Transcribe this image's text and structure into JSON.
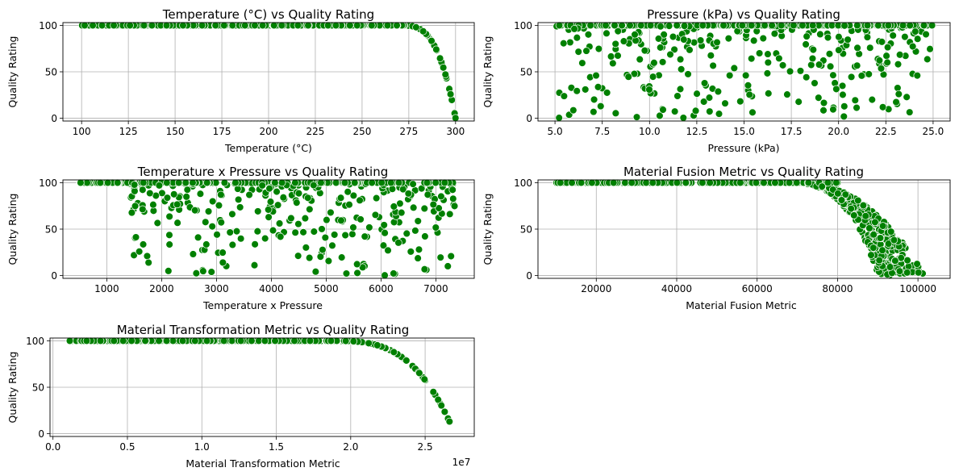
{
  "figure": {
    "marker_color": "#008000",
    "marker_edge_color": "#ffffff",
    "grid_color": "#b0b0b0"
  },
  "chart_data": [
    {
      "type": "scatter",
      "title": "Temperature (°C) vs Quality Rating",
      "xlabel": "Temperature (°C)",
      "ylabel": "Quality Rating",
      "xlim": [
        90,
        310
      ],
      "ylim": [
        -3,
        103
      ],
      "xticks": [
        100,
        125,
        150,
        175,
        200,
        225,
        250,
        275,
        300
      ],
      "xtick_labels": [
        "100",
        "125",
        "150",
        "175",
        "200",
        "225",
        "250",
        "275",
        "300"
      ],
      "yticks": [
        0,
        50,
        100
      ],
      "ytick_labels": [
        "0",
        "50",
        "100"
      ],
      "grid": true,
      "shape": "temp",
      "count": 420
    },
    {
      "type": "scatter",
      "title": "Pressure (kPa) vs Quality Rating",
      "xlabel": "Pressure (kPa)",
      "ylabel": "Quality Rating",
      "xlim": [
        4.1,
        25.9
      ],
      "ylim": [
        -3,
        103
      ],
      "xticks": [
        5,
        7.5,
        10,
        12.5,
        15,
        17.5,
        20,
        22.5,
        25
      ],
      "xtick_labels": [
        "5.0",
        "7.5",
        "10.0",
        "12.5",
        "15.0",
        "17.5",
        "20.0",
        "22.5",
        "25.0"
      ],
      "yticks": [
        0,
        50,
        100
      ],
      "ytick_labels": [
        "0",
        "50",
        "100"
      ],
      "grid": true,
      "shape": "pressure",
      "count": 520
    },
    {
      "type": "scatter",
      "title": "Temperature x Pressure vs Quality Rating",
      "xlabel": "Temperature x Pressure",
      "ylabel": "Quality Rating",
      "xlim": [
        200,
        7700
      ],
      "ylim": [
        -3,
        103
      ],
      "xticks": [
        1000,
        2000,
        3000,
        4000,
        5000,
        6000,
        7000
      ],
      "xtick_labels": [
        "1000",
        "2000",
        "3000",
        "4000",
        "5000",
        "6000",
        "7000"
      ],
      "yticks": [
        0,
        50,
        100
      ],
      "ytick_labels": [
        "0",
        "50",
        "100"
      ],
      "grid": true,
      "shape": "tp",
      "count": 520
    },
    {
      "type": "scatter",
      "title": "Material Fusion Metric vs Quality Rating",
      "xlabel": "Material Fusion Metric",
      "ylabel": "Quality Rating",
      "xlim": [
        5500,
        108000
      ],
      "ylim": [
        -3,
        103
      ],
      "xticks": [
        20000,
        40000,
        60000,
        80000,
        100000
      ],
      "xtick_labels": [
        "20000",
        "40000",
        "60000",
        "80000",
        "100000"
      ],
      "yticks": [
        0,
        50,
        100
      ],
      "ytick_labels": [
        "0",
        "50",
        "100"
      ],
      "grid": true,
      "shape": "fusion",
      "count": 640
    },
    {
      "type": "scatter",
      "title": "Material Transformation Metric vs Quality Rating",
      "xlabel": "Material Transformation Metric",
      "ylabel": "Quality Rating",
      "xlim": [
        -200000,
        28300000
      ],
      "ylim": [
        -3,
        103
      ],
      "xticks": [
        0,
        5000000,
        10000000,
        15000000,
        20000000,
        25000000
      ],
      "xtick_labels": [
        "0.0",
        "0.5",
        "1.0",
        "1.5",
        "2.0",
        "2.5"
      ],
      "offset_text": "1e7",
      "yticks": [
        0,
        50,
        100
      ],
      "ytick_labels": [
        "0",
        "50",
        "100"
      ],
      "grid": true,
      "shape": "transform",
      "count": 420
    }
  ]
}
